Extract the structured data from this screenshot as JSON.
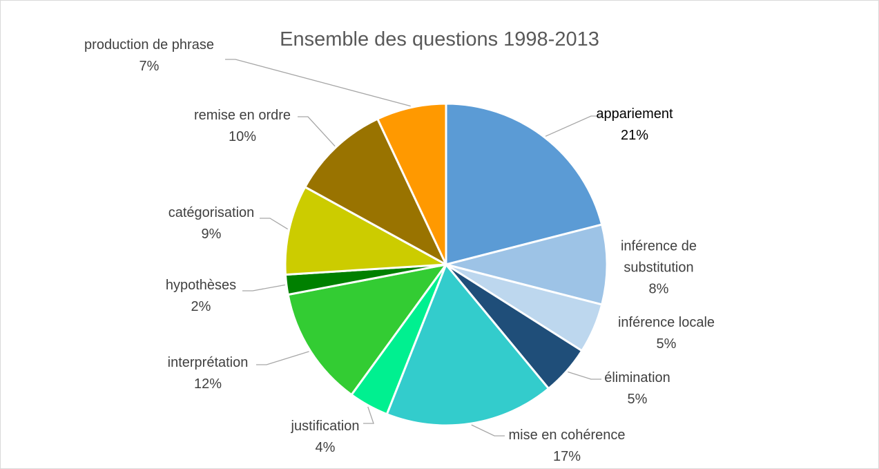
{
  "chart_data": {
    "type": "pie",
    "title": "Ensemble des questions 1998-2013",
    "categories": [
      "appariement",
      "inférence de substitution",
      "inférence locale",
      "élimination",
      "mise en cohérence",
      "justification",
      "interprétation",
      "hypothèses",
      "catégorisation",
      "remise en ordre",
      "production de phrase"
    ],
    "values": [
      21,
      8,
      5,
      5,
      17,
      4,
      12,
      2,
      9,
      10,
      7
    ],
    "value_labels": [
      "21%",
      "8%",
      "5%",
      "5%",
      "17%",
      "4%",
      "12%",
      "2%",
      "9%",
      "10%",
      "7%"
    ],
    "colors": [
      "#5b9bd5",
      "#9dc3e6",
      "#bdd7ee",
      "#1f4e79",
      "#33cccc",
      "#00f090",
      "#33cc33",
      "#008000",
      "#cccc00",
      "#997300",
      "#ff9900"
    ]
  }
}
